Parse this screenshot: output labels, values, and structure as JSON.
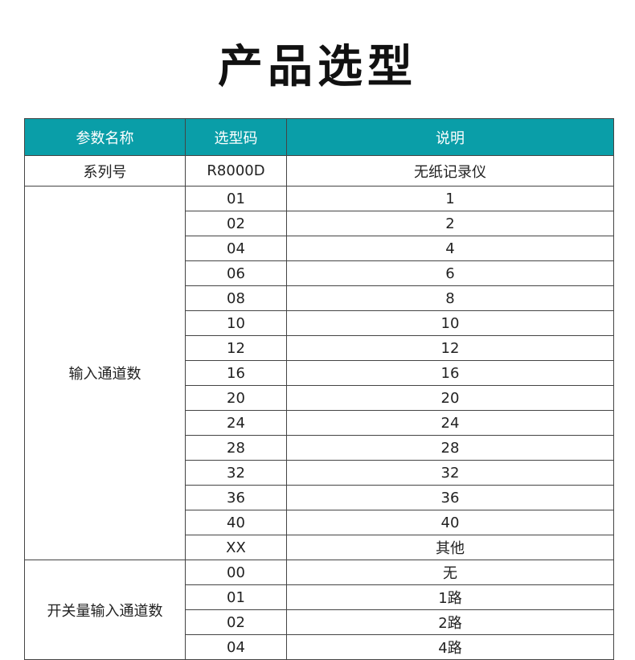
{
  "title": "产品选型",
  "colors": {
    "header_bg": "#0a9ea8"
  },
  "table": {
    "headers": [
      "参数名称",
      "选型码",
      "说明"
    ],
    "series": {
      "name": "系列号",
      "code": "R8000D",
      "desc": "无纸记录仪"
    },
    "groups": [
      {
        "name": "输入通道数",
        "rows": [
          [
            "01",
            "1"
          ],
          [
            "02",
            "2"
          ],
          [
            "04",
            "4"
          ],
          [
            "06",
            "6"
          ],
          [
            "08",
            "8"
          ],
          [
            "10",
            "10"
          ],
          [
            "12",
            "12"
          ],
          [
            "16",
            "16"
          ],
          [
            "20",
            "20"
          ],
          [
            "24",
            "24"
          ],
          [
            "28",
            "28"
          ],
          [
            "32",
            "32"
          ],
          [
            "36",
            "36"
          ],
          [
            "40",
            "40"
          ],
          [
            "XX",
            "其他"
          ]
        ]
      },
      {
        "name": "开关量输入通道数",
        "rows": [
          [
            "00",
            "无"
          ],
          [
            "01",
            "1路"
          ],
          [
            "02",
            "2路"
          ],
          [
            "04",
            "4路"
          ]
        ]
      }
    ]
  }
}
